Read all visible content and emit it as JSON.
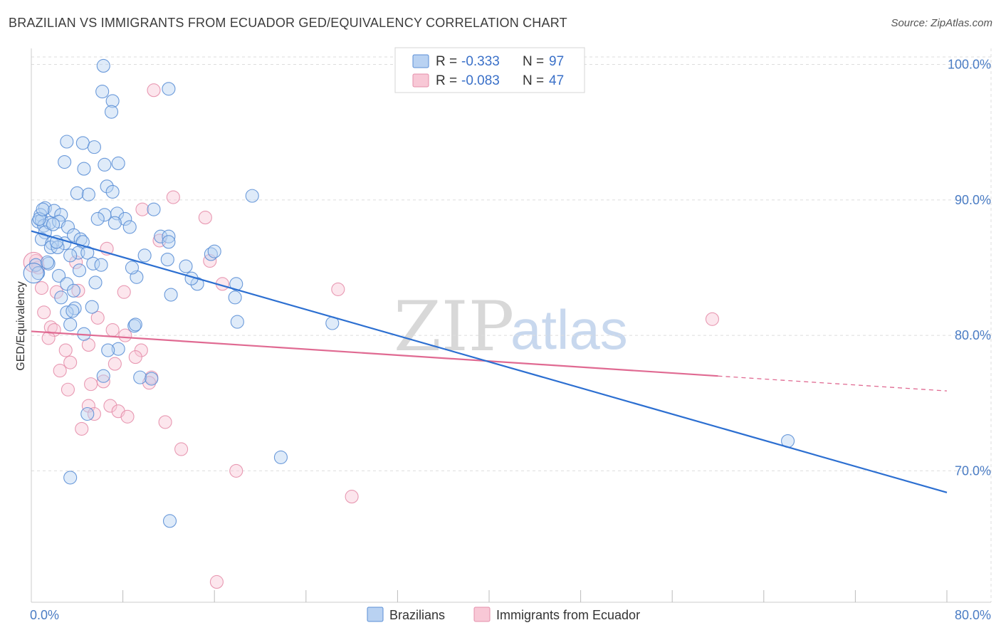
{
  "header": {
    "title": "BRAZILIAN VS IMMIGRANTS FROM ECUADOR GED/EQUIVALENCY CORRELATION CHART",
    "source": "Source: ZipAtlas.com"
  },
  "colors": {
    "blue": "#5b8fd6",
    "blue_fill": "#b9d2f2",
    "blue_line": "#2c6fd1",
    "pink": "#e58fab",
    "pink_fill": "#f8c8d6",
    "pink_line": "#e06a92",
    "grid": "#dddddd",
    "tick_text": "#4a7cc4"
  },
  "legend": {
    "blue": {
      "r_label": "R =",
      "r_value": "-0.333",
      "n_label": "N =",
      "n_value": "97"
    },
    "pink": {
      "r_label": "R =",
      "r_value": "-0.083",
      "n_label": "N =",
      "n_value": "47"
    }
  },
  "bottom_legend": {
    "blue_label": "Brazilians",
    "pink_label": "Immigrants from Ecuador"
  },
  "watermark": {
    "zip": "ZIP",
    "atlas": "atlas"
  },
  "chart_data": {
    "type": "scatter",
    "title": "BRAZILIAN VS IMMIGRANTS FROM ECUADOR GED/EQUIVALENCY CORRELATION CHART",
    "xlabel": "",
    "ylabel": "GED/Equivalency",
    "xlim": [
      0,
      80
    ],
    "ylim": [
      60.3,
      101.5
    ],
    "x_tick_labels": [
      "0.0%",
      "80.0%"
    ],
    "y_ticks": [
      70,
      80,
      90,
      100
    ],
    "y_tick_labels": [
      "70.0%",
      "80.0%",
      "90.0%",
      "100.0%"
    ],
    "grid": true,
    "legend_position": "top-center",
    "series": [
      {
        "name": "Brazilians",
        "color": "#5b8fd6",
        "trend": {
          "x": [
            0,
            80
          ],
          "y": [
            87.7,
            68.4
          ],
          "solid_to": 80
        },
        "points": [
          [
            6.3,
            99.9
          ],
          [
            6.2,
            98.0
          ],
          [
            12.0,
            98.2
          ],
          [
            7.1,
            97.3
          ],
          [
            7.0,
            96.5
          ],
          [
            3.1,
            94.3
          ],
          [
            4.5,
            94.2
          ],
          [
            5.5,
            93.9
          ],
          [
            2.9,
            92.8
          ],
          [
            6.4,
            92.6
          ],
          [
            7.6,
            92.7
          ],
          [
            4.6,
            92.3
          ],
          [
            6.6,
            91.0
          ],
          [
            7.1,
            90.6
          ],
          [
            4.0,
            90.5
          ],
          [
            5.0,
            90.4
          ],
          [
            19.3,
            90.3
          ],
          [
            1.2,
            89.4
          ],
          [
            2.0,
            89.2
          ],
          [
            0.8,
            88.9
          ],
          [
            2.6,
            88.9
          ],
          [
            6.4,
            88.9
          ],
          [
            7.5,
            89.0
          ],
          [
            10.7,
            89.3
          ],
          [
            0.6,
            88.4
          ],
          [
            0.9,
            88.5
          ],
          [
            1.1,
            88.1
          ],
          [
            1.6,
            88.3
          ],
          [
            2.4,
            88.4
          ],
          [
            5.8,
            88.6
          ],
          [
            8.2,
            88.6
          ],
          [
            1.2,
            87.6
          ],
          [
            3.2,
            88.0
          ],
          [
            7.3,
            88.3
          ],
          [
            8.6,
            88.0
          ],
          [
            0.9,
            87.1
          ],
          [
            1.8,
            86.8
          ],
          [
            2.9,
            86.8
          ],
          [
            3.7,
            87.4
          ],
          [
            4.3,
            87.1
          ],
          [
            4.5,
            86.9
          ],
          [
            11.3,
            87.3
          ],
          [
            12.0,
            87.3
          ],
          [
            12.0,
            86.9
          ],
          [
            1.7,
            86.5
          ],
          [
            2.3,
            86.5
          ],
          [
            4.1,
            86.1
          ],
          [
            4.9,
            86.1
          ],
          [
            9.9,
            85.9
          ],
          [
            15.7,
            86.0
          ],
          [
            16.0,
            86.2
          ],
          [
            1.5,
            85.3
          ],
          [
            5.4,
            85.3
          ],
          [
            6.1,
            85.2
          ],
          [
            13.5,
            85.1
          ],
          [
            4.2,
            84.8
          ],
          [
            2.4,
            84.4
          ],
          [
            9.2,
            84.3
          ],
          [
            3.1,
            83.8
          ],
          [
            5.6,
            83.9
          ],
          [
            14.5,
            83.8
          ],
          [
            17.9,
            83.8
          ],
          [
            3.7,
            83.3
          ],
          [
            12.2,
            83.0
          ],
          [
            2.6,
            82.8
          ],
          [
            17.8,
            82.8
          ],
          [
            3.8,
            82.0
          ],
          [
            5.3,
            82.1
          ],
          [
            3.1,
            81.7
          ],
          [
            3.6,
            81.8
          ],
          [
            18.0,
            81.0
          ],
          [
            26.3,
            80.9
          ],
          [
            3.4,
            80.8
          ],
          [
            9.0,
            80.7
          ],
          [
            9.1,
            80.8
          ],
          [
            4.6,
            80.1
          ],
          [
            7.6,
            79.0
          ],
          [
            6.7,
            78.9
          ],
          [
            6.3,
            77.0
          ],
          [
            9.5,
            76.9
          ],
          [
            10.5,
            76.8
          ],
          [
            4.9,
            74.2
          ],
          [
            21.8,
            71.0
          ],
          [
            66.1,
            72.2
          ],
          [
            3.4,
            69.5
          ],
          [
            12.1,
            66.3
          ],
          [
            0.4,
            85.2
          ],
          [
            0.6,
            84.6
          ],
          [
            1.4,
            85.4
          ],
          [
            2.2,
            86.9
          ],
          [
            0.7,
            88.6
          ],
          [
            1.0,
            89.3
          ],
          [
            1.9,
            88.2
          ],
          [
            3.4,
            85.9
          ],
          [
            8.8,
            85.0
          ],
          [
            11.9,
            85.6
          ],
          [
            14.0,
            84.2
          ]
        ]
      },
      {
        "name": "Immigrants from Ecuador",
        "color": "#e58fab",
        "trend": {
          "x": [
            0,
            80
          ],
          "y": [
            80.3,
            75.9
          ],
          "solid_to": 60
        },
        "points": [
          [
            10.7,
            98.1
          ],
          [
            12.4,
            90.2
          ],
          [
            9.7,
            89.3
          ],
          [
            15.2,
            88.7
          ],
          [
            11.2,
            87.0
          ],
          [
            6.6,
            86.4
          ],
          [
            0.4,
            85.5
          ],
          [
            0.6,
            85.0
          ],
          [
            3.9,
            85.4
          ],
          [
            15.6,
            85.5
          ],
          [
            0.9,
            83.5
          ],
          [
            4.1,
            83.3
          ],
          [
            8.1,
            83.2
          ],
          [
            16.7,
            83.8
          ],
          [
            26.8,
            83.4
          ],
          [
            2.2,
            83.2
          ],
          [
            1.1,
            81.7
          ],
          [
            5.8,
            81.3
          ],
          [
            59.5,
            81.2
          ],
          [
            1.7,
            80.6
          ],
          [
            2.0,
            80.4
          ],
          [
            7.1,
            80.4
          ],
          [
            8.2,
            80.0
          ],
          [
            1.5,
            79.8
          ],
          [
            5.0,
            79.3
          ],
          [
            3.0,
            78.9
          ],
          [
            9.6,
            78.9
          ],
          [
            3.4,
            78.0
          ],
          [
            7.3,
            77.9
          ],
          [
            9.1,
            78.4
          ],
          [
            2.5,
            77.4
          ],
          [
            10.5,
            76.9
          ],
          [
            10.3,
            76.5
          ],
          [
            5.2,
            76.4
          ],
          [
            6.3,
            76.6
          ],
          [
            3.2,
            76.0
          ],
          [
            5.0,
            74.8
          ],
          [
            6.9,
            74.8
          ],
          [
            7.6,
            74.4
          ],
          [
            8.4,
            74.0
          ],
          [
            5.5,
            74.2
          ],
          [
            11.7,
            73.6
          ],
          [
            4.4,
            73.1
          ],
          [
            13.1,
            71.6
          ],
          [
            17.9,
            70.0
          ],
          [
            28.0,
            68.1
          ],
          [
            16.2,
            61.8
          ]
        ]
      }
    ]
  }
}
